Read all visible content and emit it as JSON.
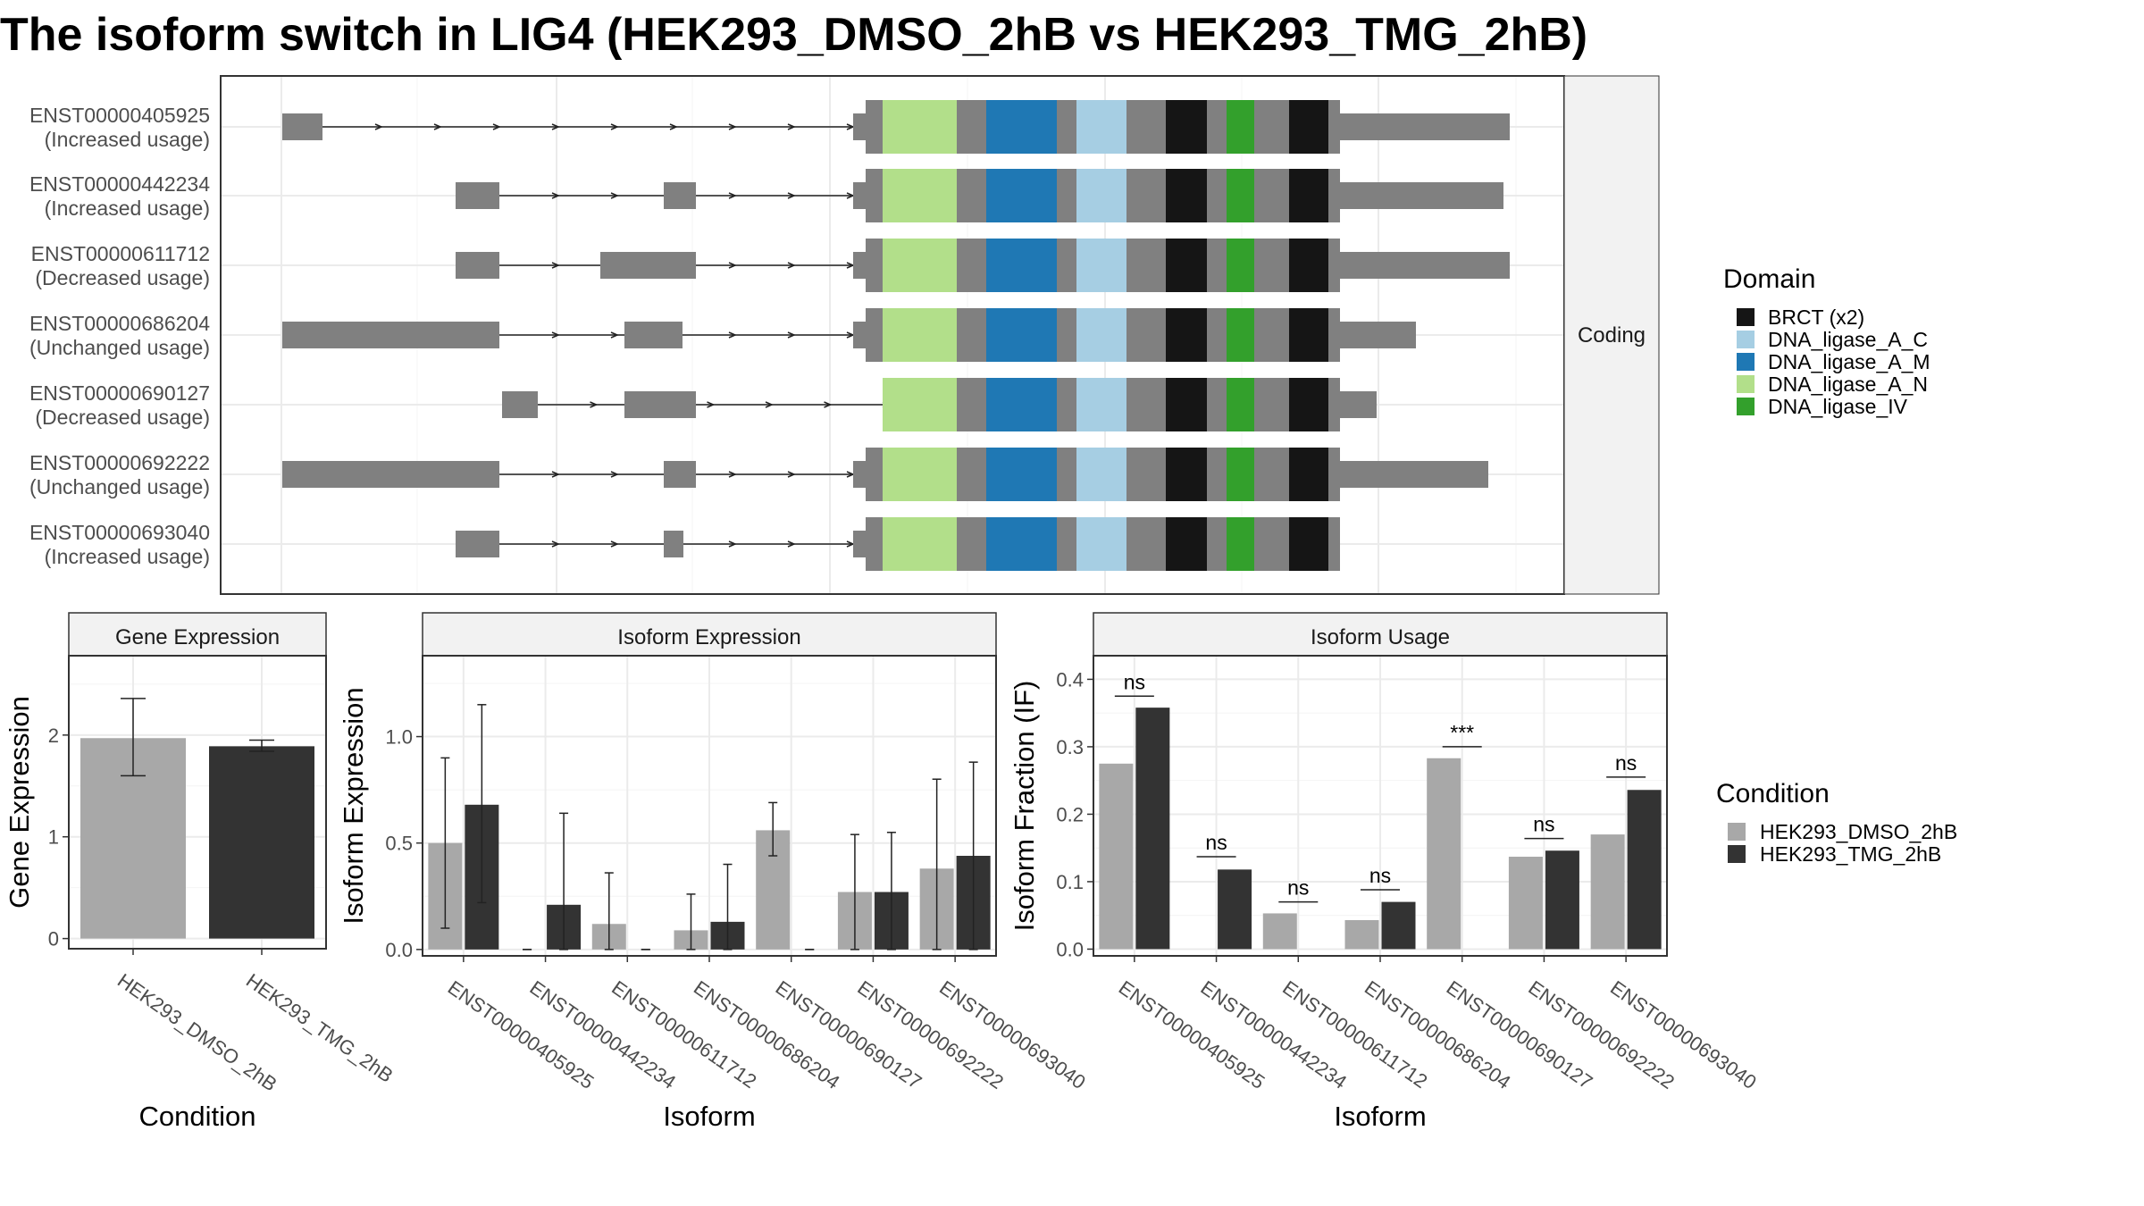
{
  "title": "The isoform switch in LIG4 (HEK293_DMSO_2hB vs HEK293_TMG_2hB)",
  "colors": {
    "exon": "#808080",
    "condition_1": "#a8a8a8",
    "condition_2": "#333333"
  },
  "structure": {
    "strip_label": "Coding",
    "transcripts": [
      {
        "id": "ENST00000405925",
        "status": "(Increased usage)"
      },
      {
        "id": "ENST00000442234",
        "status": "(Increased usage)"
      },
      {
        "id": "ENST00000611712",
        "status": "(Decreased usage)"
      },
      {
        "id": "ENST00000686204",
        "status": "(Unchanged usage)"
      },
      {
        "id": "ENST00000690127",
        "status": "(Decreased usage)"
      },
      {
        "id": "ENST00000692222",
        "status": "(Unchanged usage)"
      },
      {
        "id": "ENST00000693040",
        "status": "(Increased usage)"
      }
    ]
  },
  "domain_legend": {
    "title": "Domain",
    "items": [
      {
        "label": "BRCT (x2)",
        "color": "#151515"
      },
      {
        "label": "DNA_ligase_A_C",
        "color": "#a6cee3"
      },
      {
        "label": "DNA_ligase_A_M",
        "color": "#1f78b4"
      },
      {
        "label": "DNA_ligase_A_N",
        "color": "#b2df8a"
      },
      {
        "label": "DNA_ligase_IV",
        "color": "#33a02c"
      }
    ]
  },
  "condition_legend": {
    "title": "Condition",
    "items": [
      {
        "label": "HEK293_DMSO_2hB",
        "color": "#a8a8a8"
      },
      {
        "label": "HEK293_TMG_2hB",
        "color": "#333333"
      }
    ]
  },
  "chart_data": [
    {
      "type": "bar",
      "title": "Gene Expression",
      "xlabel": "Condition",
      "ylabel": "Gene Expression",
      "categories": [
        "HEK293_DMSO_2hB",
        "HEK293_TMG_2hB"
      ],
      "values": [
        1.97,
        1.89
      ],
      "error_low": [
        1.6,
        1.84
      ],
      "error_high": [
        2.36,
        1.95
      ],
      "ylim": [
        -0.1,
        2.78
      ],
      "yticks": [
        0,
        1,
        2
      ]
    },
    {
      "type": "bar",
      "title": "Isoform Expression",
      "xlabel": "Isoform",
      "ylabel": "Isoform Expression",
      "categories": [
        "ENST00000405925",
        "ENST00000442234",
        "ENST00000611712",
        "ENST00000686204",
        "ENST00000690127",
        "ENST00000692222",
        "ENST00000693040"
      ],
      "series": [
        {
          "name": "HEK293_DMSO_2hB",
          "values": [
            0.5,
            0.0,
            0.12,
            0.09,
            0.56,
            0.27,
            0.38
          ],
          "error_low": [
            0.1,
            0.0,
            0.0,
            0.0,
            0.44,
            0.0,
            0.0
          ],
          "error_high": [
            0.9,
            0.0,
            0.36,
            0.26,
            0.69,
            0.54,
            0.8
          ]
        },
        {
          "name": "HEK293_TMG_2hB",
          "values": [
            0.68,
            0.21,
            0.0,
            0.13,
            0.0,
            0.27,
            0.44
          ],
          "error_low": [
            0.22,
            0.0,
            0.0,
            0.0,
            0.0,
            0.0,
            0.0
          ],
          "error_high": [
            1.15,
            0.64,
            0.0,
            0.4,
            0.0,
            0.55,
            0.88
          ]
        }
      ],
      "ylim": [
        -0.03,
        1.38
      ],
      "yticks": [
        0.0,
        0.5,
        1.0
      ],
      "ytick_labels": [
        "0.0",
        "0.5",
        "1.0"
      ]
    },
    {
      "type": "bar",
      "title": "Isoform Usage",
      "xlabel": "Isoform",
      "ylabel": "Isoform Fraction (IF)",
      "categories": [
        "ENST00000405925",
        "ENST00000442234",
        "ENST00000611712",
        "ENST00000686204",
        "ENST00000690127",
        "ENST00000692222",
        "ENST00000693040"
      ],
      "series": [
        {
          "name": "HEK293_DMSO_2hB",
          "values": [
            0.275,
            0.0,
            0.053,
            0.043,
            0.283,
            0.137,
            0.17
          ]
        },
        {
          "name": "HEK293_TMG_2hB",
          "values": [
            0.358,
            0.118,
            0.0,
            0.07,
            0.0,
            0.146,
            0.236
          ]
        }
      ],
      "significance": [
        "ns",
        "ns",
        "ns",
        "ns",
        "***",
        "ns",
        "ns"
      ],
      "significance_y": [
        0.375,
        0.137,
        0.07,
        0.088,
        0.3,
        0.164,
        0.255
      ],
      "ylim": [
        -0.01,
        0.435
      ],
      "yticks": [
        0.0,
        0.1,
        0.2,
        0.3,
        0.4
      ],
      "ytick_labels": [
        "0.0",
        "0.1",
        "0.2",
        "0.3",
        "0.4"
      ]
    }
  ]
}
